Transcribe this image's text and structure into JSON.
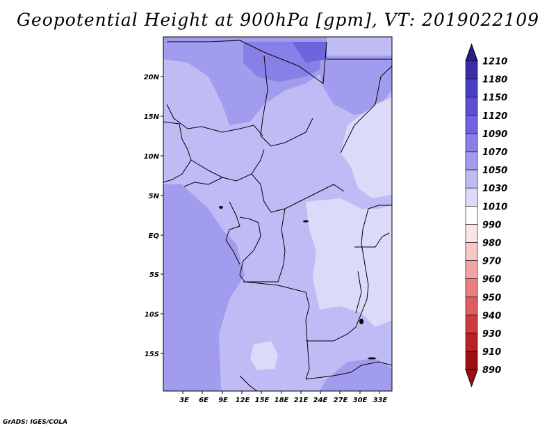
{
  "title": "Geopotential Height at 900hPa [gpm], VT: 2019022109",
  "credit": "GrADS: IGES/COLA",
  "map": {
    "lon_labels": [
      "3E",
      "6E",
      "9E",
      "12E",
      "15E",
      "18E",
      "21E",
      "24E",
      "27E",
      "30E",
      "33E"
    ],
    "lat_labels": [
      "20N",
      "15N",
      "10N",
      "5N",
      "EQ",
      "5S",
      "10S",
      "15S"
    ]
  },
  "colorbar": {
    "levels": [
      "1210",
      "1180",
      "1150",
      "1120",
      "1090",
      "1070",
      "1050",
      "1030",
      "1010",
      "990",
      "980",
      "970",
      "960",
      "950",
      "940",
      "930",
      "910",
      "890"
    ],
    "colors": [
      "#2a1e8c",
      "#3a2ea8",
      "#4a3fc0",
      "#5b50d2",
      "#6e64de",
      "#8880e8",
      "#a29cef",
      "#bfbbf5",
      "#dcdaf9",
      "#ffffff",
      "#fde4e4",
      "#f9c5c5",
      "#f2a3a3",
      "#e88080",
      "#dc5e5e",
      "#cc3c3c",
      "#b82222",
      "#9c1010"
    ]
  }
}
